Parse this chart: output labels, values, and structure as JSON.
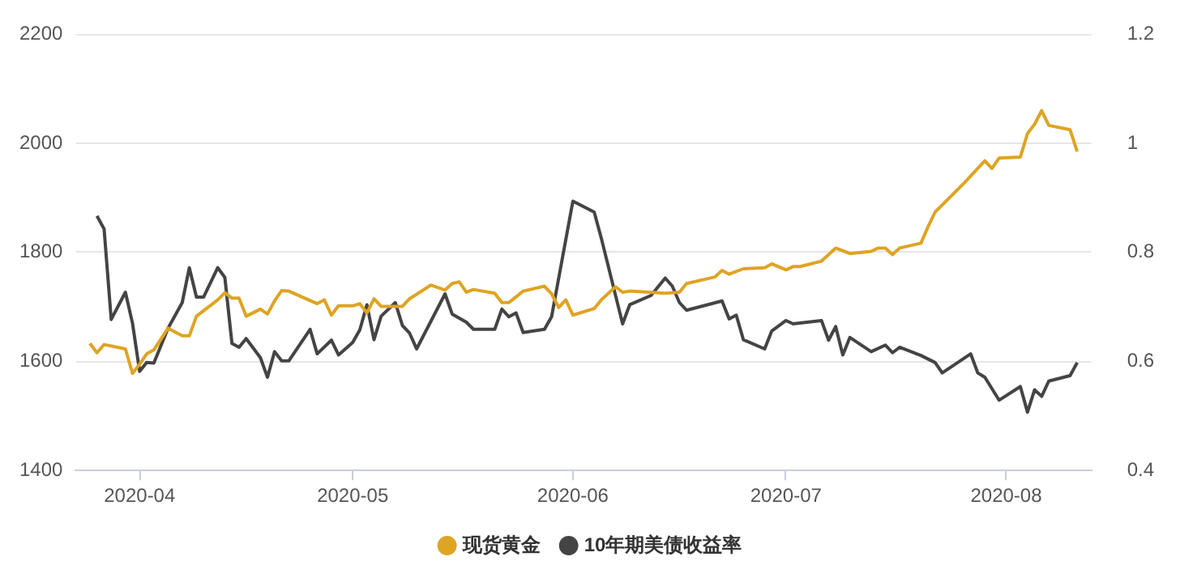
{
  "chart_data": {
    "type": "line",
    "xlim": [
      "2020-03-23",
      "2020-08-13"
    ],
    "xticks": [
      {
        "value": "2020-04-01",
        "label": "2020-04"
      },
      {
        "value": "2020-05-01",
        "label": "2020-05"
      },
      {
        "value": "2020-06-01",
        "label": "2020-06"
      },
      {
        "value": "2020-07-01",
        "label": "2020-07"
      },
      {
        "value": "2020-08-01",
        "label": "2020-08"
      }
    ],
    "ylim": [
      1400,
      2200
    ],
    "yticks": [
      1400,
      1600,
      1800,
      2000,
      2200
    ],
    "y2lim": [
      0.4,
      1.2
    ],
    "y2ticks": [
      {
        "value": 0.4,
        "label": "0.4"
      },
      {
        "value": 0.6,
        "label": "0.6"
      },
      {
        "value": 0.8,
        "label": "0.8"
      },
      {
        "value": 1,
        "label": "1"
      },
      {
        "value": 1.2,
        "label": "1.2"
      }
    ],
    "grid": "y",
    "legend": "bottom",
    "marker": "none",
    "line_style": "solid",
    "series": [
      {
        "name": "现货黄金",
        "color": "#dea424",
        "x": [
          "2020-03-25",
          "2020-03-26",
          "2020-03-27",
          "2020-03-30",
          "2020-03-31",
          "2020-04-01",
          "2020-04-02",
          "2020-04-03",
          "2020-04-05",
          "2020-04-07",
          "2020-04-08",
          "2020-04-09",
          "2020-04-12",
          "2020-04-13",
          "2020-04-14",
          "2020-04-15",
          "2020-04-16",
          "2020-04-18",
          "2020-04-19",
          "2020-04-20",
          "2020-04-21",
          "2020-04-22",
          "2020-04-26",
          "2020-04-27",
          "2020-04-28",
          "2020-04-29",
          "2020-05-01",
          "2020-05-02",
          "2020-05-03",
          "2020-05-04",
          "2020-05-05",
          "2020-05-08",
          "2020-05-09",
          "2020-05-12",
          "2020-05-14",
          "2020-05-15",
          "2020-05-16",
          "2020-05-17",
          "2020-05-18",
          "2020-05-21",
          "2020-05-22",
          "2020-05-23",
          "2020-05-25",
          "2020-05-28",
          "2020-05-29",
          "2020-05-30",
          "2020-05-31",
          "2020-06-01",
          "2020-06-04",
          "2020-06-05",
          "2020-06-07",
          "2020-06-08",
          "2020-06-09",
          "2020-06-14",
          "2020-06-16",
          "2020-06-17",
          "2020-06-21",
          "2020-06-22",
          "2020-06-23",
          "2020-06-25",
          "2020-06-28",
          "2020-06-29",
          "2020-07-01",
          "2020-07-02",
          "2020-07-03",
          "2020-07-06",
          "2020-07-07",
          "2020-07-08",
          "2020-07-10",
          "2020-07-13",
          "2020-07-14",
          "2020-07-15",
          "2020-07-16",
          "2020-07-17",
          "2020-07-20",
          "2020-07-21",
          "2020-07-22",
          "2020-07-26",
          "2020-07-29",
          "2020-07-30",
          "2020-07-31",
          "2020-08-03",
          "2020-08-04",
          "2020-08-05",
          "2020-08-06",
          "2020-08-07",
          "2020-08-10",
          "2020-08-11"
        ],
        "values": [
          1633,
          1616,
          1631,
          1623,
          1578,
          1595,
          1614,
          1621,
          1661,
          1647,
          1647,
          1683,
          1713,
          1726,
          1716,
          1716,
          1683,
          1696,
          1687,
          1711,
          1730,
          1729,
          1706,
          1713,
          1685,
          1702,
          1702,
          1706,
          1689,
          1715,
          1701,
          1701,
          1715,
          1740,
          1731,
          1743,
          1746,
          1727,
          1732,
          1725,
          1708,
          1708,
          1729,
          1738,
          1724,
          1699,
          1713,
          1685,
          1697,
          1713,
          1737,
          1727,
          1729,
          1725,
          1727,
          1743,
          1755,
          1767,
          1760,
          1770,
          1772,
          1779,
          1768,
          1774,
          1774,
          1784,
          1796,
          1808,
          1798,
          1802,
          1808,
          1808,
          1796,
          1808,
          1817,
          1847,
          1874,
          1926,
          1968,
          1954,
          1973,
          1975,
          2018,
          2035,
          2060,
          2033,
          2025,
          1985
        ]
      },
      {
        "name": "10年期美债收益率",
        "color": "#444444",
        "axis": "y2",
        "x": [
          "2020-03-26",
          "2020-03-27",
          "2020-03-28",
          "2020-03-30",
          "2020-03-31",
          "2020-04-01",
          "2020-04-02",
          "2020-04-03",
          "2020-04-05",
          "2020-04-07",
          "2020-04-08",
          "2020-04-09",
          "2020-04-10",
          "2020-04-12",
          "2020-04-13",
          "2020-04-14",
          "2020-04-15",
          "2020-04-16",
          "2020-04-18",
          "2020-04-19",
          "2020-04-20",
          "2020-04-21",
          "2020-04-22",
          "2020-04-25",
          "2020-04-26",
          "2020-04-28",
          "2020-04-29",
          "2020-05-01",
          "2020-05-02",
          "2020-05-03",
          "2020-05-04",
          "2020-05-05",
          "2020-05-07",
          "2020-05-08",
          "2020-05-09",
          "2020-05-10",
          "2020-05-14",
          "2020-05-15",
          "2020-05-17",
          "2020-05-18",
          "2020-05-21",
          "2020-05-22",
          "2020-05-23",
          "2020-05-24",
          "2020-05-25",
          "2020-05-28",
          "2020-05-29",
          "2020-06-01",
          "2020-06-04",
          "2020-06-05",
          "2020-06-08",
          "2020-06-09",
          "2020-06-12",
          "2020-06-14",
          "2020-06-15",
          "2020-06-16",
          "2020-06-17",
          "2020-06-22",
          "2020-06-23",
          "2020-06-24",
          "2020-06-25",
          "2020-06-28",
          "2020-06-29",
          "2020-07-01",
          "2020-07-02",
          "2020-07-06",
          "2020-07-07",
          "2020-07-08",
          "2020-07-09",
          "2020-07-10",
          "2020-07-13",
          "2020-07-15",
          "2020-07-16",
          "2020-07-17",
          "2020-07-20",
          "2020-07-22",
          "2020-07-23",
          "2020-07-27",
          "2020-07-28",
          "2020-07-29",
          "2020-07-31",
          "2020-08-03",
          "2020-08-04",
          "2020-08-05",
          "2020-08-06",
          "2020-08-07",
          "2020-08-10",
          "2020-08-11"
        ],
        "values": [
          0.867,
          0.843,
          0.677,
          0.727,
          0.67,
          0.582,
          0.598,
          0.597,
          0.661,
          0.708,
          0.772,
          0.718,
          0.718,
          0.772,
          0.754,
          0.633,
          0.626,
          0.642,
          0.607,
          0.571,
          0.618,
          0.601,
          0.601,
          0.659,
          0.614,
          0.639,
          0.612,
          0.635,
          0.658,
          0.704,
          0.64,
          0.683,
          0.708,
          0.666,
          0.652,
          0.623,
          0.724,
          0.687,
          0.672,
          0.659,
          0.659,
          0.696,
          0.682,
          0.689,
          0.653,
          0.659,
          0.682,
          0.894,
          0.874,
          0.826,
          0.669,
          0.704,
          0.721,
          0.753,
          0.738,
          0.708,
          0.694,
          0.711,
          0.678,
          0.685,
          0.64,
          0.623,
          0.656,
          0.675,
          0.669,
          0.675,
          0.639,
          0.664,
          0.612,
          0.644,
          0.618,
          0.63,
          0.616,
          0.626,
          0.611,
          0.598,
          0.579,
          0.614,
          0.579,
          0.571,
          0.529,
          0.554,
          0.507,
          0.548,
          0.536,
          0.564,
          0.574,
          0.598
        ]
      }
    ]
  }
}
